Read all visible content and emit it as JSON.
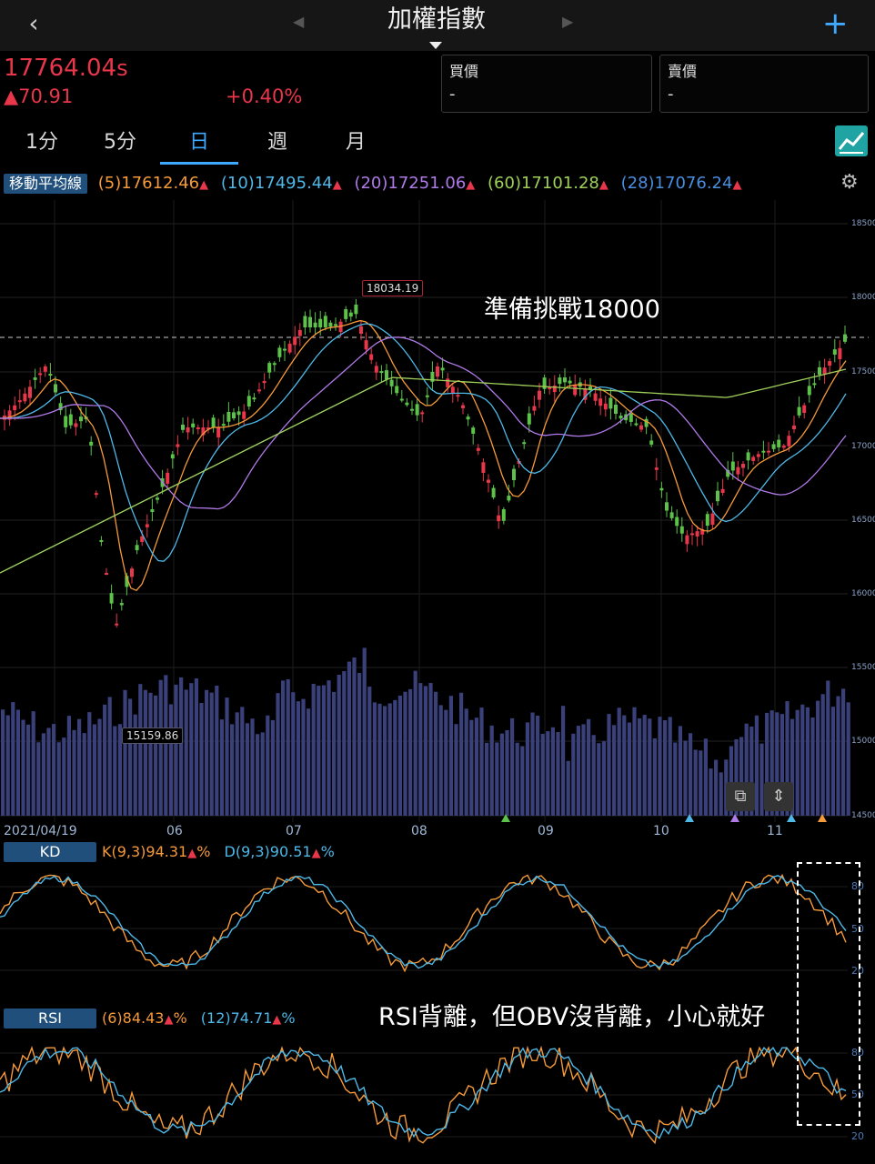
{
  "header": {
    "back_icon": "chevron-left-icon",
    "title": "加權指數",
    "plus_icon": "plus-icon"
  },
  "quote": {
    "price": "17764.04",
    "price_suffix": "s",
    "change": "▲70.91",
    "change_pct": "+0.40%",
    "bid_label": "買價",
    "bid_value": "-",
    "ask_label": "賣價",
    "ask_value": "-"
  },
  "tabs": [
    {
      "label": "1分"
    },
    {
      "label": "5分"
    },
    {
      "label": "日"
    },
    {
      "label": "週"
    },
    {
      "label": "月"
    }
  ],
  "ma": {
    "label": "移動平均線",
    "items": [
      {
        "text": "(5)17612.46",
        "color": "#f59a3a"
      },
      {
        "text": "(10)17495.44",
        "color": "#4fb8e8"
      },
      {
        "text": "(20)17251.06",
        "color": "#b07ae8"
      },
      {
        "text": "(60)17101.28",
        "color": "#9ed05a"
      },
      {
        "text": "(28)17076.24",
        "color": "#4a8ee0"
      }
    ]
  },
  "chart_data": [
    {
      "type": "candlestick",
      "y_ticks": [
        "18500",
        "18000",
        "17500",
        "17000",
        "16500",
        "16000",
        "15500",
        "15000",
        "14500"
      ],
      "x_ticks": [
        "2021/04/19",
        "06",
        "07",
        "08",
        "09",
        "10",
        "11"
      ],
      "high_label": "18034.19",
      "low_label": "15159.86",
      "annotation": "準備挑戰18000",
      "reference_line": 17764.04
    },
    {
      "type": "line",
      "name": "KD",
      "k_text": "K(9,3)94.31",
      "d_text": "D(9,3)90.51",
      "pct": "%",
      "y_ticks": [
        "80",
        "50",
        "20"
      ]
    },
    {
      "type": "line",
      "name": "RSI",
      "rsi6_text": "(6)84.43",
      "rsi12_text": "(12)74.71",
      "pct": "%",
      "y_ticks": [
        "80",
        "50",
        "20"
      ],
      "annotation": "RSI背離，但OBV沒背離，小心就好"
    }
  ]
}
